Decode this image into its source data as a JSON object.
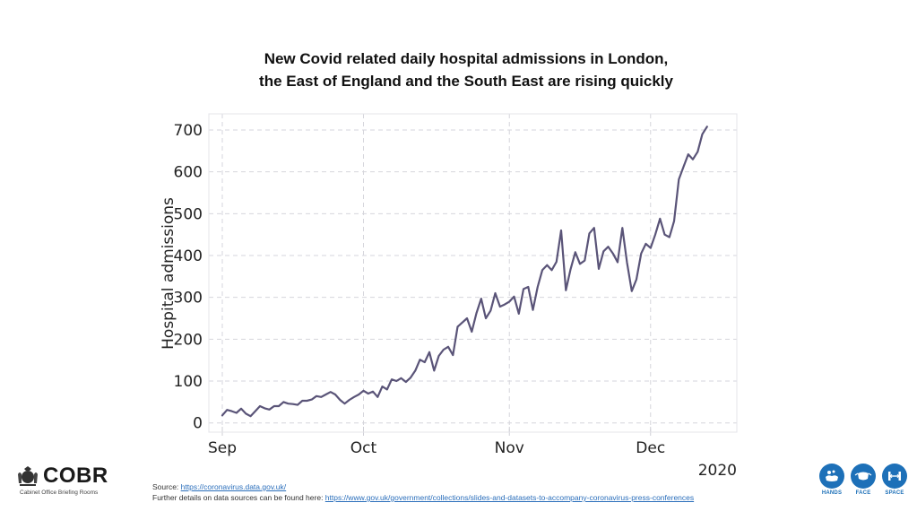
{
  "title_line1": "New Covid related daily hospital admissions in London,",
  "title_line2": "the East of England and the South East are rising quickly",
  "chart_data": {
    "type": "line",
    "title": "New Covid related daily hospital admissions in London, the East of England and the South East are rising quickly",
    "xlabel": "",
    "ylabel": "Hospital admissions",
    "x_start": "2020-09-01",
    "x_end": "2020-12-13",
    "x_axis_year_label": "2020",
    "x_ticks": [
      {
        "label": "Sep",
        "day": 0
      },
      {
        "label": "Oct",
        "day": 30
      },
      {
        "label": "Nov",
        "day": 61
      },
      {
        "label": "Dec",
        "day": 91
      }
    ],
    "y_ticks": [
      0,
      100,
      200,
      300,
      400,
      500,
      600,
      700
    ],
    "ylim": [
      0,
      700
    ],
    "grid": true,
    "line_color": "#5a5478",
    "series": [
      {
        "name": "Hospital admissions",
        "values": [
          18,
          31,
          28,
          24,
          34,
          22,
          16,
          28,
          40,
          35,
          32,
          40,
          40,
          50,
          46,
          45,
          43,
          53,
          53,
          56,
          64,
          62,
          68,
          74,
          68,
          55,
          46,
          55,
          62,
          68,
          77,
          70,
          75,
          62,
          87,
          80,
          104,
          100,
          107,
          98,
          108,
          125,
          151,
          145,
          169,
          125,
          160,
          175,
          182,
          162,
          230,
          240,
          250,
          218,
          262,
          297,
          250,
          268,
          310,
          278,
          283,
          290,
          302,
          261,
          320,
          325,
          270,
          325,
          365,
          377,
          365,
          385,
          460,
          317,
          367,
          408,
          380,
          388,
          453,
          466,
          368,
          410,
          421,
          405,
          384,
          466,
          383,
          315,
          343,
          405,
          428,
          418,
          450,
          488,
          450,
          444,
          482,
          582,
          612,
          642,
          630,
          648,
          690,
          708
        ]
      }
    ]
  },
  "footer": {
    "source_prefix": "Source: ",
    "source_link": "https://coronavirus.data.gov.uk/",
    "details_prefix": "Further details on data sources can be found here: ",
    "details_link": "https://www.gov.uk/government/collections/slides-and-datasets-to-accompany-coronavirus-press-conferences"
  },
  "logo": {
    "name": "COBR",
    "subtitle": "Cabinet Office Briefing Rooms"
  },
  "hands_face_space": {
    "color": "#1d70b8",
    "items": [
      {
        "label": "HANDS",
        "icon": "hands-washing-icon"
      },
      {
        "label": "FACE",
        "icon": "face-mask-icon"
      },
      {
        "label": "SPACE",
        "icon": "social-distance-icon"
      }
    ]
  }
}
